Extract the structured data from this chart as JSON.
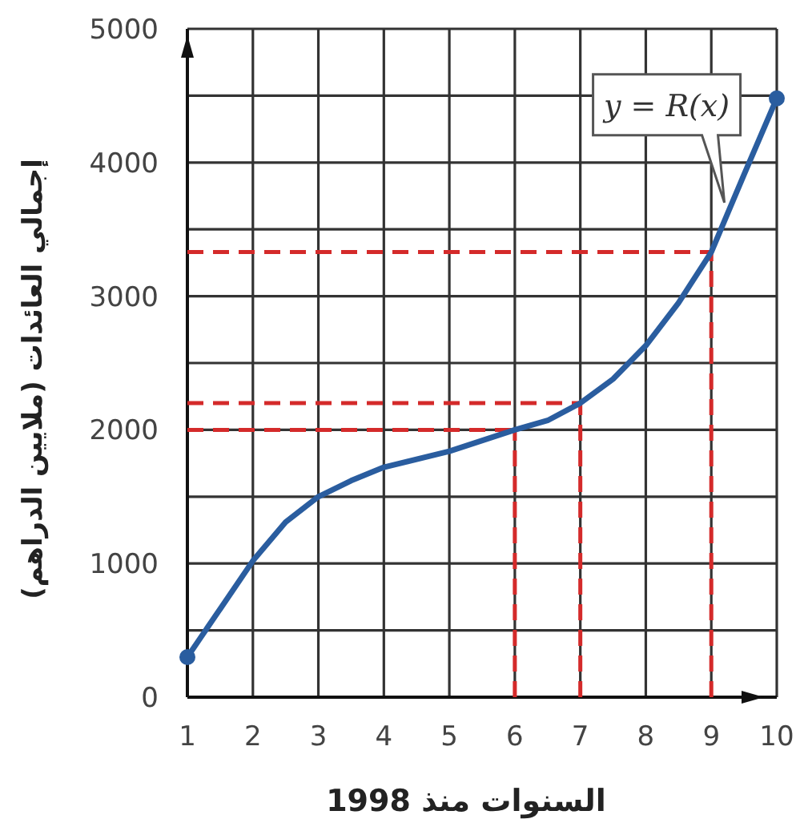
{
  "chart_data": {
    "type": "line",
    "xlabel": "السنوات منذ 1998",
    "ylabel": "إجمالي العائدات (ملايين الدراهم)",
    "x": [
      1,
      1.5,
      2,
      2.5,
      3,
      3.5,
      4,
      5,
      6,
      6.5,
      7,
      7.5,
      8,
      8.5,
      9,
      9.5,
      10
    ],
    "series": [
      {
        "color": "#2a5d9f",
        "values": [
          300,
          660,
          1020,
          1310,
          1500,
          1620,
          1720,
          1840,
          2000,
          2070,
          2200,
          2380,
          2630,
          2950,
          3330,
          3910,
          4480
        ]
      },
      {
        "type": "scatter",
        "marker": "circle",
        "color": "#2a5d9f",
        "x": [
          1,
          10
        ],
        "values": [
          300,
          4480
        ]
      }
    ],
    "xlim": [
      1,
      10
    ],
    "ylim": [
      0,
      5000
    ],
    "xticks": [
      1,
      2,
      3,
      4,
      5,
      6,
      7,
      8,
      9,
      10
    ],
    "yticks": [
      0,
      {
        "value": 500,
        "label": null
      },
      1000,
      {
        "value": 1500,
        "label": null
      },
      2000,
      {
        "value": 2500,
        "label": null
      },
      3000,
      {
        "value": 3500,
        "label": null
      },
      4000,
      {
        "value": 4500,
        "label": null
      },
      5000
    ],
    "grid": true,
    "line_style": "solid",
    "annotations": [
      {
        "text": "y = R(x)",
        "x": 9.2,
        "y": 3700
      }
    ],
    "ref_lines": [
      {
        "axis": "y",
        "value": 3330,
        "color": "#d42a2a",
        "line_style": "dashed"
      },
      {
        "axis": "y",
        "value": 2200,
        "color": "#d42a2a",
        "line_style": "dashed"
      },
      {
        "axis": "y",
        "value": 2000,
        "color": "#d42a2a",
        "line_style": "dashed"
      },
      {
        "axis": "x",
        "value": 9,
        "color": "#d42a2a",
        "line_style": "dashed"
      },
      {
        "axis": "x",
        "value": 7,
        "color": "#d42a2a",
        "line_style": "dashed"
      },
      {
        "axis": "x",
        "value": 6,
        "color": "#d42a2a",
        "line_style": "dashed"
      }
    ]
  }
}
